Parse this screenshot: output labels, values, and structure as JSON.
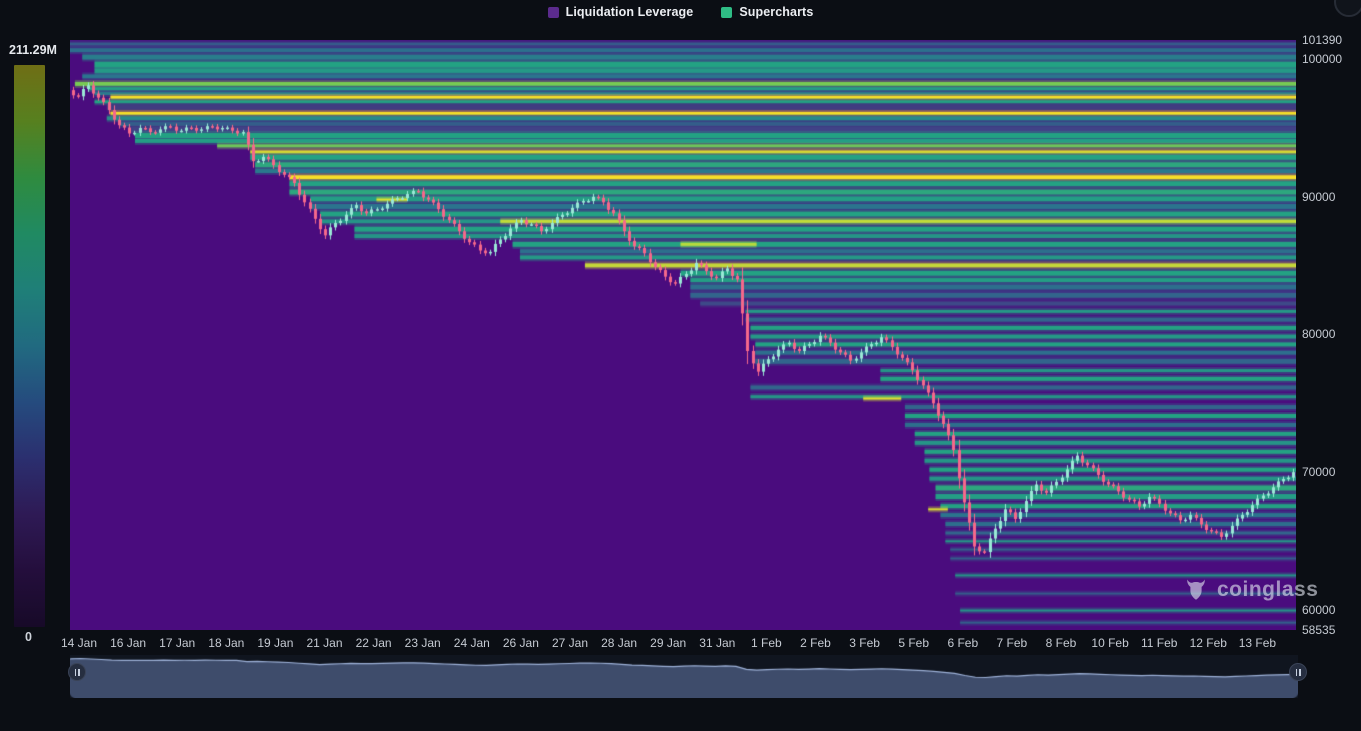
{
  "legend": {
    "items": [
      {
        "label": "Liquidation Leverage",
        "color": "#5b2b8d"
      },
      {
        "label": "Supercharts",
        "color": "#2fbd85"
      }
    ]
  },
  "colorbar": {
    "max_label": "211.29M",
    "min_label": "0",
    "gradient": [
      "#6f6e15",
      "#57801f",
      "#2f8b3f",
      "#208a62",
      "#1f7f78",
      "#216a80",
      "#254b7e",
      "#2b2f6f",
      "#2e1a55",
      "#240e3c",
      "#170a28"
    ]
  },
  "watermark": {
    "text": "coinglass"
  },
  "chart_data": {
    "type": "heatmap",
    "title": "Liquidation Leverage heatmap with BTC price candles",
    "legend_position": "top-center",
    "grid": false,
    "y_axis": {
      "min": 58535,
      "max": 101390,
      "ticks": [
        101390,
        100000,
        90000,
        80000,
        70000,
        60000,
        58535
      ]
    },
    "x_axis": {
      "ticks": [
        "14 Jan",
        "16 Jan",
        "17 Jan",
        "18 Jan",
        "19 Jan",
        "21 Jan",
        "22 Jan",
        "23 Jan",
        "24 Jan",
        "26 Jan",
        "27 Jan",
        "28 Jan",
        "29 Jan",
        "31 Jan",
        "1 Feb",
        "2 Feb",
        "3 Feb",
        "5 Feb",
        "6 Feb",
        "7 Feb",
        "8 Feb",
        "10 Feb",
        "11 Feb",
        "12 Feb",
        "13 Feb"
      ]
    },
    "colorbar_scale": {
      "min": 0,
      "max_label": "211.29M"
    },
    "colors": {
      "background": "#4a0c7e",
      "candle_up": "#9ae8d6",
      "candle_down": "#f5688b",
      "nav_fill": "#3e4c6b",
      "nav_line": "#9fb3da",
      "nav_bg": "#10151f"
    },
    "heatmap_bands": [
      {
        "p": 101100,
        "x0": 0,
        "h": 3,
        "t": 0.32
      },
      {
        "p": 100650,
        "x0": 0,
        "h": 4,
        "t": 0.4
      },
      {
        "p": 100150,
        "x0": 0.01,
        "h": 5,
        "t": 0.46
      },
      {
        "p": 99600,
        "x0": 0.02,
        "h": 6,
        "t": 0.62
      },
      {
        "p": 99150,
        "x0": 0.02,
        "h": 5,
        "t": 0.58
      },
      {
        "p": 98750,
        "x0": 0.01,
        "h": 4,
        "t": 0.42
      },
      {
        "p": 98200,
        "x0": 0.004,
        "h": 4,
        "t": 0.8
      },
      {
        "p": 97850,
        "x0": 0.015,
        "h": 3,
        "t": 0.6
      },
      {
        "p": 97500,
        "x0": 0.02,
        "h": 3,
        "t": 0.45
      },
      {
        "p": 97230,
        "x0": 0.033,
        "h": 3,
        "t": 1.0
      },
      {
        "p": 96900,
        "x0": 0.02,
        "h": 3,
        "t": 0.62
      },
      {
        "p": 96500,
        "x0": 0.03,
        "h": 5,
        "t": 0.2
      },
      {
        "p": 96060,
        "x0": 0.033,
        "h": 3,
        "t": 1.0
      },
      {
        "p": 95700,
        "x0": 0.03,
        "h": 4,
        "t": 0.52
      },
      {
        "p": 95280,
        "x0": 0.04,
        "h": 4,
        "t": 0.34
      },
      {
        "p": 94880,
        "x0": 0.05,
        "h": 6,
        "t": 0.22
      },
      {
        "p": 94450,
        "x0": 0.053,
        "h": 5,
        "t": 0.62
      },
      {
        "p": 94060,
        "x0": 0.053,
        "h": 4,
        "t": 0.6
      },
      {
        "p": 93700,
        "x0": 0.12,
        "h": 3,
        "t": 0.78
      },
      {
        "p": 93260,
        "x0": 0.147,
        "h": 3,
        "t": 0.95
      },
      {
        "p": 92870,
        "x0": 0.147,
        "h": 5,
        "t": 0.62
      },
      {
        "p": 92330,
        "x0": 0.151,
        "h": 5,
        "t": 0.64
      },
      {
        "p": 91870,
        "x0": 0.151,
        "h": 4,
        "t": 0.44
      },
      {
        "p": 91420,
        "x0": 0.179,
        "h": 4,
        "t": 1.0
      },
      {
        "p": 90950,
        "x0": 0.179,
        "h": 5,
        "t": 0.62
      },
      {
        "p": 90350,
        "x0": 0.179,
        "h": 5,
        "t": 0.64
      },
      {
        "p": 89850,
        "x0": 0.196,
        "h": 5,
        "t": 0.6
      },
      {
        "p": 89800,
        "x0": 0.25,
        "h": 2,
        "t": 0.97,
        "x1": 0.275
      },
      {
        "p": 89300,
        "x0": 0.196,
        "h": 5,
        "t": 0.42
      },
      {
        "p": 88750,
        "x0": 0.204,
        "h": 5,
        "t": 0.62
      },
      {
        "p": 88220,
        "x0": 0.204,
        "h": 4,
        "t": 0.56
      },
      {
        "p": 88220,
        "x0": 0.351,
        "h": 3,
        "t": 0.92
      },
      {
        "p": 87650,
        "x0": 0.232,
        "h": 5,
        "t": 0.62
      },
      {
        "p": 87150,
        "x0": 0.232,
        "h": 4,
        "t": 0.56
      },
      {
        "p": 86550,
        "x0": 0.361,
        "h": 5,
        "t": 0.62
      },
      {
        "p": 86550,
        "x0": 0.498,
        "h": 3,
        "t": 0.9,
        "x1": 0.56
      },
      {
        "p": 86050,
        "x0": 0.367,
        "h": 4,
        "t": 0.4
      },
      {
        "p": 85600,
        "x0": 0.367,
        "h": 4,
        "t": 0.58
      },
      {
        "p": 85020,
        "x0": 0.42,
        "h": 4,
        "t": 0.92
      },
      {
        "p": 84450,
        "x0": 0.498,
        "h": 5,
        "t": 0.62
      },
      {
        "p": 83950,
        "x0": 0.506,
        "h": 4,
        "t": 0.6
      },
      {
        "p": 83450,
        "x0": 0.506,
        "h": 5,
        "t": 0.4
      },
      {
        "p": 82850,
        "x0": 0.506,
        "h": 5,
        "t": 0.36
      },
      {
        "p": 82250,
        "x0": 0.514,
        "h": 4,
        "t": 0.25
      },
      {
        "p": 81680,
        "x0": 0.551,
        "h": 3,
        "t": 0.58
      },
      {
        "p": 81080,
        "x0": 0.551,
        "h": 4,
        "t": 0.36
      },
      {
        "p": 80480,
        "x0": 0.555,
        "h": 4,
        "t": 0.62
      },
      {
        "p": 79850,
        "x0": 0.555,
        "h": 4,
        "t": 0.58
      },
      {
        "p": 79280,
        "x0": 0.559,
        "h": 4,
        "t": 0.62
      },
      {
        "p": 78680,
        "x0": 0.559,
        "h": 4,
        "t": 0.4
      },
      {
        "p": 78050,
        "x0": 0.559,
        "h": 5,
        "t": 0.36
      },
      {
        "p": 77380,
        "x0": 0.661,
        "h": 3,
        "t": 0.56
      },
      {
        "p": 76780,
        "x0": 0.661,
        "h": 4,
        "t": 0.62
      },
      {
        "p": 76150,
        "x0": 0.555,
        "h": 4,
        "t": 0.36
      },
      {
        "p": 75480,
        "x0": 0.555,
        "h": 3,
        "t": 0.56
      },
      {
        "p": 75350,
        "x0": 0.647,
        "h": 2,
        "t": 0.97,
        "x1": 0.678
      },
      {
        "p": 74730,
        "x0": 0.681,
        "h": 4,
        "t": 0.36
      },
      {
        "p": 74080,
        "x0": 0.681,
        "h": 4,
        "t": 0.62
      },
      {
        "p": 73430,
        "x0": 0.681,
        "h": 4,
        "t": 0.4
      },
      {
        "p": 72780,
        "x0": 0.689,
        "h": 4,
        "t": 0.62
      },
      {
        "p": 72130,
        "x0": 0.689,
        "h": 4,
        "t": 0.56
      },
      {
        "p": 71480,
        "x0": 0.697,
        "h": 4,
        "t": 0.62
      },
      {
        "p": 70830,
        "x0": 0.697,
        "h": 4,
        "t": 0.56
      },
      {
        "p": 70180,
        "x0": 0.701,
        "h": 4,
        "t": 0.62
      },
      {
        "p": 69530,
        "x0": 0.701,
        "h": 4,
        "t": 0.56
      },
      {
        "p": 68850,
        "x0": 0.706,
        "h": 5,
        "t": 0.64
      },
      {
        "p": 68230,
        "x0": 0.706,
        "h": 5,
        "t": 0.6
      },
      {
        "p": 67530,
        "x0": 0.71,
        "h": 4,
        "t": 0.62
      },
      {
        "p": 67300,
        "x0": 0.7,
        "h": 2,
        "t": 0.95,
        "x1": 0.716
      },
      {
        "p": 66880,
        "x0": 0.71,
        "h": 4,
        "t": 0.42
      },
      {
        "p": 66230,
        "x0": 0.714,
        "h": 4,
        "t": 0.4
      },
      {
        "p": 65580,
        "x0": 0.714,
        "h": 3,
        "t": 0.36
      },
      {
        "p": 64980,
        "x0": 0.714,
        "h": 2,
        "t": 0.56
      },
      {
        "p": 64380,
        "x0": 0.718,
        "h": 2,
        "t": 0.34
      },
      {
        "p": 63730,
        "x0": 0.718,
        "h": 2,
        "t": 0.33
      },
      {
        "p": 62500,
        "x0": 0.722,
        "h": 2,
        "t": 0.55
      },
      {
        "p": 61180,
        "x0": 0.722,
        "h": 2,
        "t": 0.32
      },
      {
        "p": 59950,
        "x0": 0.726,
        "h": 2,
        "t": 0.55
      },
      {
        "p": 59070,
        "x0": 0.726,
        "h": 2,
        "t": 0.34
      }
    ],
    "price": {
      "symbol_path": "BTC price (read from candles)",
      "closes": [
        97300,
        98100,
        97200,
        96300,
        95200,
        94600,
        95000,
        94700,
        94900,
        95100,
        94800,
        95000,
        94900,
        95100,
        95000,
        94800,
        94700,
        92600,
        92900,
        92300,
        91600,
        91000,
        89600,
        88400,
        87200,
        88100,
        88700,
        89400,
        88800,
        89100,
        89500,
        89900,
        90200,
        90400,
        89800,
        89100,
        88300,
        87500,
        86700,
        86100,
        86000,
        86900,
        87700,
        88300,
        88000,
        87500,
        88100,
        88700,
        89200,
        89700,
        90000,
        89600,
        88800,
        87500,
        86400,
        85900,
        84900,
        84200,
        83700,
        84400,
        85200,
        84600,
        84100,
        84800,
        84000,
        78800,
        77300,
        78200,
        78900,
        79400,
        78800,
        79300,
        79900,
        79400,
        78700,
        78100,
        78700,
        79300,
        79800,
        79100,
        78300,
        77400,
        76300,
        75000,
        73500,
        71600,
        67800,
        64600,
        64200,
        65900,
        67300,
        66600,
        67900,
        69100,
        68500,
        69300,
        70200,
        71200,
        70500,
        69800,
        69100,
        68600,
        68000,
        67500,
        68200,
        67700,
        67000,
        66500,
        66900,
        66200,
        65700,
        65300,
        66100,
        66900,
        67600,
        68300,
        68900,
        69500,
        70000
      ]
    }
  }
}
